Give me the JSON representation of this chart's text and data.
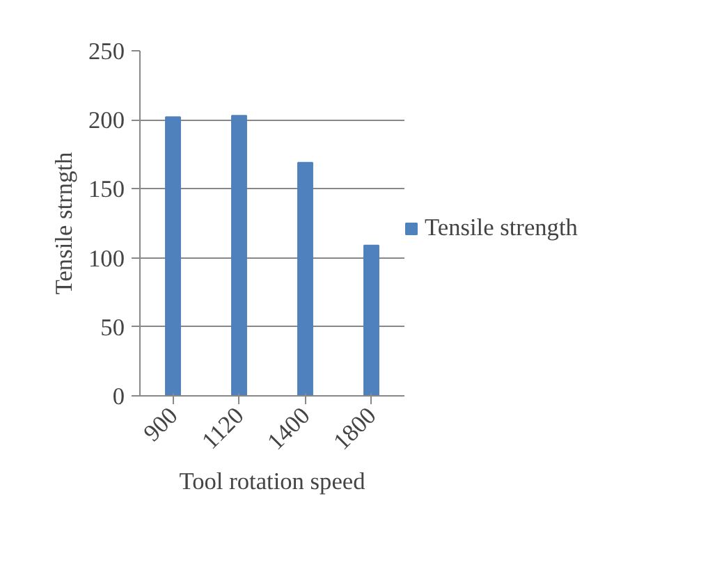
{
  "chart_data": {
    "type": "bar",
    "xlabel": "Tool rotation speed",
    "ylabel": "Tensile strngth",
    "categories": [
      "900",
      "1120",
      "1400",
      "1800"
    ],
    "series": [
      {
        "name": "Tensile strength",
        "color": "#4f81bd",
        "values": [
          202,
          203,
          169,
          109
        ]
      }
    ],
    "ylim": [
      0,
      250
    ],
    "yticks": [
      0,
      50,
      100,
      150,
      200,
      250
    ],
    "grid": "y",
    "legend": "right"
  }
}
